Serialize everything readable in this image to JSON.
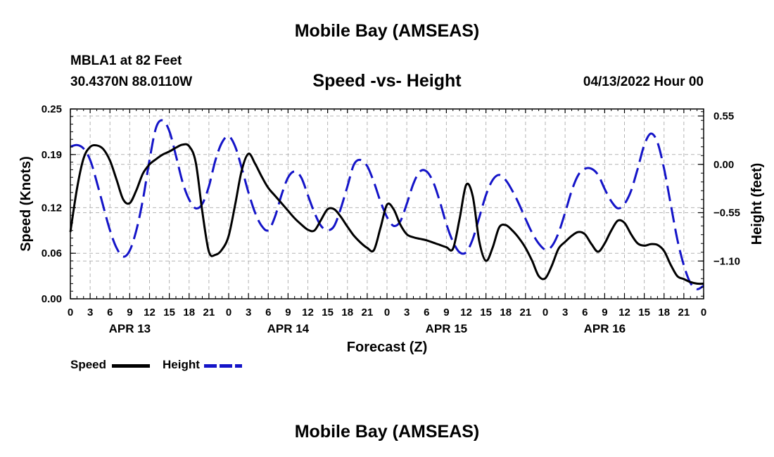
{
  "header": {
    "title": "Mobile Bay (AMSEAS)",
    "station": "MBLA1 at 82 Feet",
    "coords": "30.4370N  88.0110W",
    "subtitle": "Speed -vs- Height",
    "datetime": "04/13/2022 Hour 00",
    "bottom_title": "Mobile Bay (AMSEAS)"
  },
  "legend": {
    "speed_label": "Speed",
    "height_label": "Height"
  },
  "colors": {
    "speed": "#000000",
    "height": "#1414c8",
    "grid": "#b4b4b4"
  },
  "chart_data": {
    "type": "line",
    "title": "Speed -vs- Height",
    "xlabel": "Forecast (Z)",
    "ylabel": "Speed (Knots)",
    "y2label": "Height (feet)",
    "x_unit": "hours since 04/13/2022 00Z",
    "xlim": [
      0,
      96
    ],
    "ylim": [
      0,
      0.25
    ],
    "y2lim": [
      -1.53,
      0.63
    ],
    "grid": true,
    "legend_position": "bottom-left",
    "x_ticks": [
      0,
      3,
      6,
      9,
      12,
      15,
      18,
      21,
      24,
      27,
      30,
      33,
      36,
      39,
      42,
      45,
      48,
      51,
      54,
      57,
      60,
      63,
      66,
      69,
      72,
      75,
      78,
      81,
      84,
      87,
      90,
      93,
      96
    ],
    "x_tick_labels": [
      "0",
      "3",
      "6",
      "9",
      "12",
      "15",
      "18",
      "21",
      "0",
      "3",
      "6",
      "9",
      "12",
      "15",
      "18",
      "21",
      "0",
      "3",
      "6",
      "9",
      "12",
      "15",
      "18",
      "21",
      "0",
      "3",
      "6",
      "9",
      "12",
      "15",
      "18",
      "21",
      "0"
    ],
    "day_labels": [
      {
        "label": "APR 13",
        "at": 9
      },
      {
        "label": "APR 14",
        "at": 33
      },
      {
        "label": "APR 15",
        "at": 57
      },
      {
        "label": "APR 16",
        "at": 81
      }
    ],
    "y_ticks": [
      0.0,
      0.06,
      0.12,
      0.19,
      0.25
    ],
    "y_tick_labels": [
      "0.00",
      "0.06",
      "0.12",
      "0.19",
      "0.25"
    ],
    "y2_ticks": [
      0.55,
      0.0,
      -0.55,
      -1.1
    ],
    "y2_tick_labels": [
      "0.55",
      "0.00",
      "−0.55",
      "−1.10"
    ],
    "series": [
      {
        "name": "Speed",
        "axis": "left",
        "style": "solid",
        "points": [
          [
            0,
            0.088
          ],
          [
            1,
            0.145
          ],
          [
            2,
            0.185
          ],
          [
            3,
            0.2
          ],
          [
            4,
            0.202
          ],
          [
            5,
            0.197
          ],
          [
            6,
            0.182
          ],
          [
            7,
            0.157
          ],
          [
            8,
            0.131
          ],
          [
            9,
            0.126
          ],
          [
            10,
            0.143
          ],
          [
            11,
            0.165
          ],
          [
            12,
            0.177
          ],
          [
            13,
            0.184
          ],
          [
            14,
            0.19
          ],
          [
            15,
            0.194
          ],
          [
            16,
            0.199
          ],
          [
            17,
            0.203
          ],
          [
            18,
            0.201
          ],
          [
            19,
            0.18
          ],
          [
            20,
            0.115
          ],
          [
            21,
            0.062
          ],
          [
            22,
            0.058
          ],
          [
            23,
            0.065
          ],
          [
            24,
            0.083
          ],
          [
            25,
            0.125
          ],
          [
            26,
            0.17
          ],
          [
            27,
            0.191
          ],
          [
            28,
            0.178
          ],
          [
            29,
            0.161
          ],
          [
            30,
            0.146
          ],
          [
            31,
            0.136
          ],
          [
            32,
            0.126
          ],
          [
            33,
            0.116
          ],
          [
            34,
            0.106
          ],
          [
            35,
            0.098
          ],
          [
            36,
            0.091
          ],
          [
            37,
            0.09
          ],
          [
            38,
            0.104
          ],
          [
            39,
            0.118
          ],
          [
            40,
            0.118
          ],
          [
            41,
            0.108
          ],
          [
            42,
            0.095
          ],
          [
            43,
            0.083
          ],
          [
            44,
            0.074
          ],
          [
            45,
            0.067
          ],
          [
            46,
            0.064
          ],
          [
            47,
            0.093
          ],
          [
            48,
            0.124
          ],
          [
            49,
            0.118
          ],
          [
            50,
            0.098
          ],
          [
            51,
            0.085
          ],
          [
            52,
            0.081
          ],
          [
            53,
            0.079
          ],
          [
            54,
            0.077
          ],
          [
            55,
            0.074
          ],
          [
            56,
            0.071
          ],
          [
            57,
            0.068
          ],
          [
            58,
            0.066
          ],
          [
            59,
            0.105
          ],
          [
            60,
            0.15
          ],
          [
            61,
            0.135
          ],
          [
            62,
            0.075
          ],
          [
            63,
            0.05
          ],
          [
            64,
            0.067
          ],
          [
            65,
            0.094
          ],
          [
            66,
            0.097
          ],
          [
            67,
            0.09
          ],
          [
            68,
            0.08
          ],
          [
            69,
            0.067
          ],
          [
            70,
            0.05
          ],
          [
            71,
            0.03
          ],
          [
            72,
            0.027
          ],
          [
            73,
            0.044
          ],
          [
            74,
            0.066
          ],
          [
            75,
            0.075
          ],
          [
            76,
            0.083
          ],
          [
            77,
            0.088
          ],
          [
            78,
            0.085
          ],
          [
            79,
            0.072
          ],
          [
            80,
            0.062
          ],
          [
            81,
            0.073
          ],
          [
            82,
            0.09
          ],
          [
            83,
            0.103
          ],
          [
            84,
            0.1
          ],
          [
            85,
            0.085
          ],
          [
            86,
            0.073
          ],
          [
            87,
            0.07
          ],
          [
            88,
            0.072
          ],
          [
            89,
            0.071
          ],
          [
            90,
            0.063
          ],
          [
            91,
            0.045
          ],
          [
            92,
            0.03
          ],
          [
            93,
            0.026
          ],
          [
            94,
            0.022
          ],
          [
            95,
            0.02
          ],
          [
            96,
            0.02
          ]
        ]
      },
      {
        "name": "Height",
        "axis": "right",
        "style": "dashed",
        "points": [
          [
            0,
            0.2
          ],
          [
            1,
            0.22
          ],
          [
            2,
            0.18
          ],
          [
            3,
            0.05
          ],
          [
            4,
            -0.2
          ],
          [
            5,
            -0.48
          ],
          [
            6,
            -0.75
          ],
          [
            7,
            -0.95
          ],
          [
            8,
            -1.05
          ],
          [
            9,
            -0.98
          ],
          [
            10,
            -0.75
          ],
          [
            11,
            -0.4
          ],
          [
            12,
            0.05
          ],
          [
            13,
            0.42
          ],
          [
            14,
            0.5
          ],
          [
            15,
            0.38
          ],
          [
            16,
            0.1
          ],
          [
            17,
            -0.2
          ],
          [
            18,
            -0.4
          ],
          [
            19,
            -0.5
          ],
          [
            20,
            -0.45
          ],
          [
            21,
            -0.25
          ],
          [
            22,
            0.05
          ],
          [
            23,
            0.25
          ],
          [
            24,
            0.32
          ],
          [
            25,
            0.2
          ],
          [
            26,
            -0.05
          ],
          [
            27,
            -0.32
          ],
          [
            28,
            -0.55
          ],
          [
            29,
            -0.7
          ],
          [
            30,
            -0.75
          ],
          [
            31,
            -0.6
          ],
          [
            32,
            -0.35
          ],
          [
            33,
            -0.15
          ],
          [
            34,
            -0.08
          ],
          [
            35,
            -0.15
          ],
          [
            36,
            -0.35
          ],
          [
            37,
            -0.55
          ],
          [
            38,
            -0.7
          ],
          [
            39,
            -0.75
          ],
          [
            40,
            -0.7
          ],
          [
            41,
            -0.5
          ],
          [
            42,
            -0.25
          ],
          [
            43,
            0.0
          ],
          [
            44,
            0.05
          ],
          [
            45,
            -0.02
          ],
          [
            46,
            -0.2
          ],
          [
            47,
            -0.42
          ],
          [
            48,
            -0.6
          ],
          [
            49,
            -0.7
          ],
          [
            50,
            -0.65
          ],
          [
            51,
            -0.45
          ],
          [
            52,
            -0.22
          ],
          [
            53,
            -0.08
          ],
          [
            54,
            -0.08
          ],
          [
            55,
            -0.2
          ],
          [
            56,
            -0.42
          ],
          [
            57,
            -0.68
          ],
          [
            58,
            -0.88
          ],
          [
            59,
            -1.0
          ],
          [
            60,
            -1.0
          ],
          [
            61,
            -0.85
          ],
          [
            62,
            -0.6
          ],
          [
            63,
            -0.35
          ],
          [
            64,
            -0.18
          ],
          [
            65,
            -0.12
          ],
          [
            66,
            -0.18
          ],
          [
            67,
            -0.3
          ],
          [
            68,
            -0.45
          ],
          [
            69,
            -0.62
          ],
          [
            70,
            -0.78
          ],
          [
            71,
            -0.9
          ],
          [
            72,
            -0.97
          ],
          [
            73,
            -0.93
          ],
          [
            74,
            -0.78
          ],
          [
            75,
            -0.55
          ],
          [
            76,
            -0.3
          ],
          [
            77,
            -0.12
          ],
          [
            78,
            -0.05
          ],
          [
            79,
            -0.05
          ],
          [
            80,
            -0.12
          ],
          [
            81,
            -0.28
          ],
          [
            82,
            -0.42
          ],
          [
            83,
            -0.5
          ],
          [
            84,
            -0.45
          ],
          [
            85,
            -0.3
          ],
          [
            86,
            -0.05
          ],
          [
            87,
            0.22
          ],
          [
            88,
            0.35
          ],
          [
            89,
            0.25
          ],
          [
            90,
            -0.05
          ],
          [
            91,
            -0.45
          ],
          [
            92,
            -0.85
          ],
          [
            93,
            -1.15
          ],
          [
            94,
            -1.35
          ],
          [
            95,
            -1.42
          ],
          [
            96,
            -1.38
          ]
        ]
      }
    ]
  }
}
